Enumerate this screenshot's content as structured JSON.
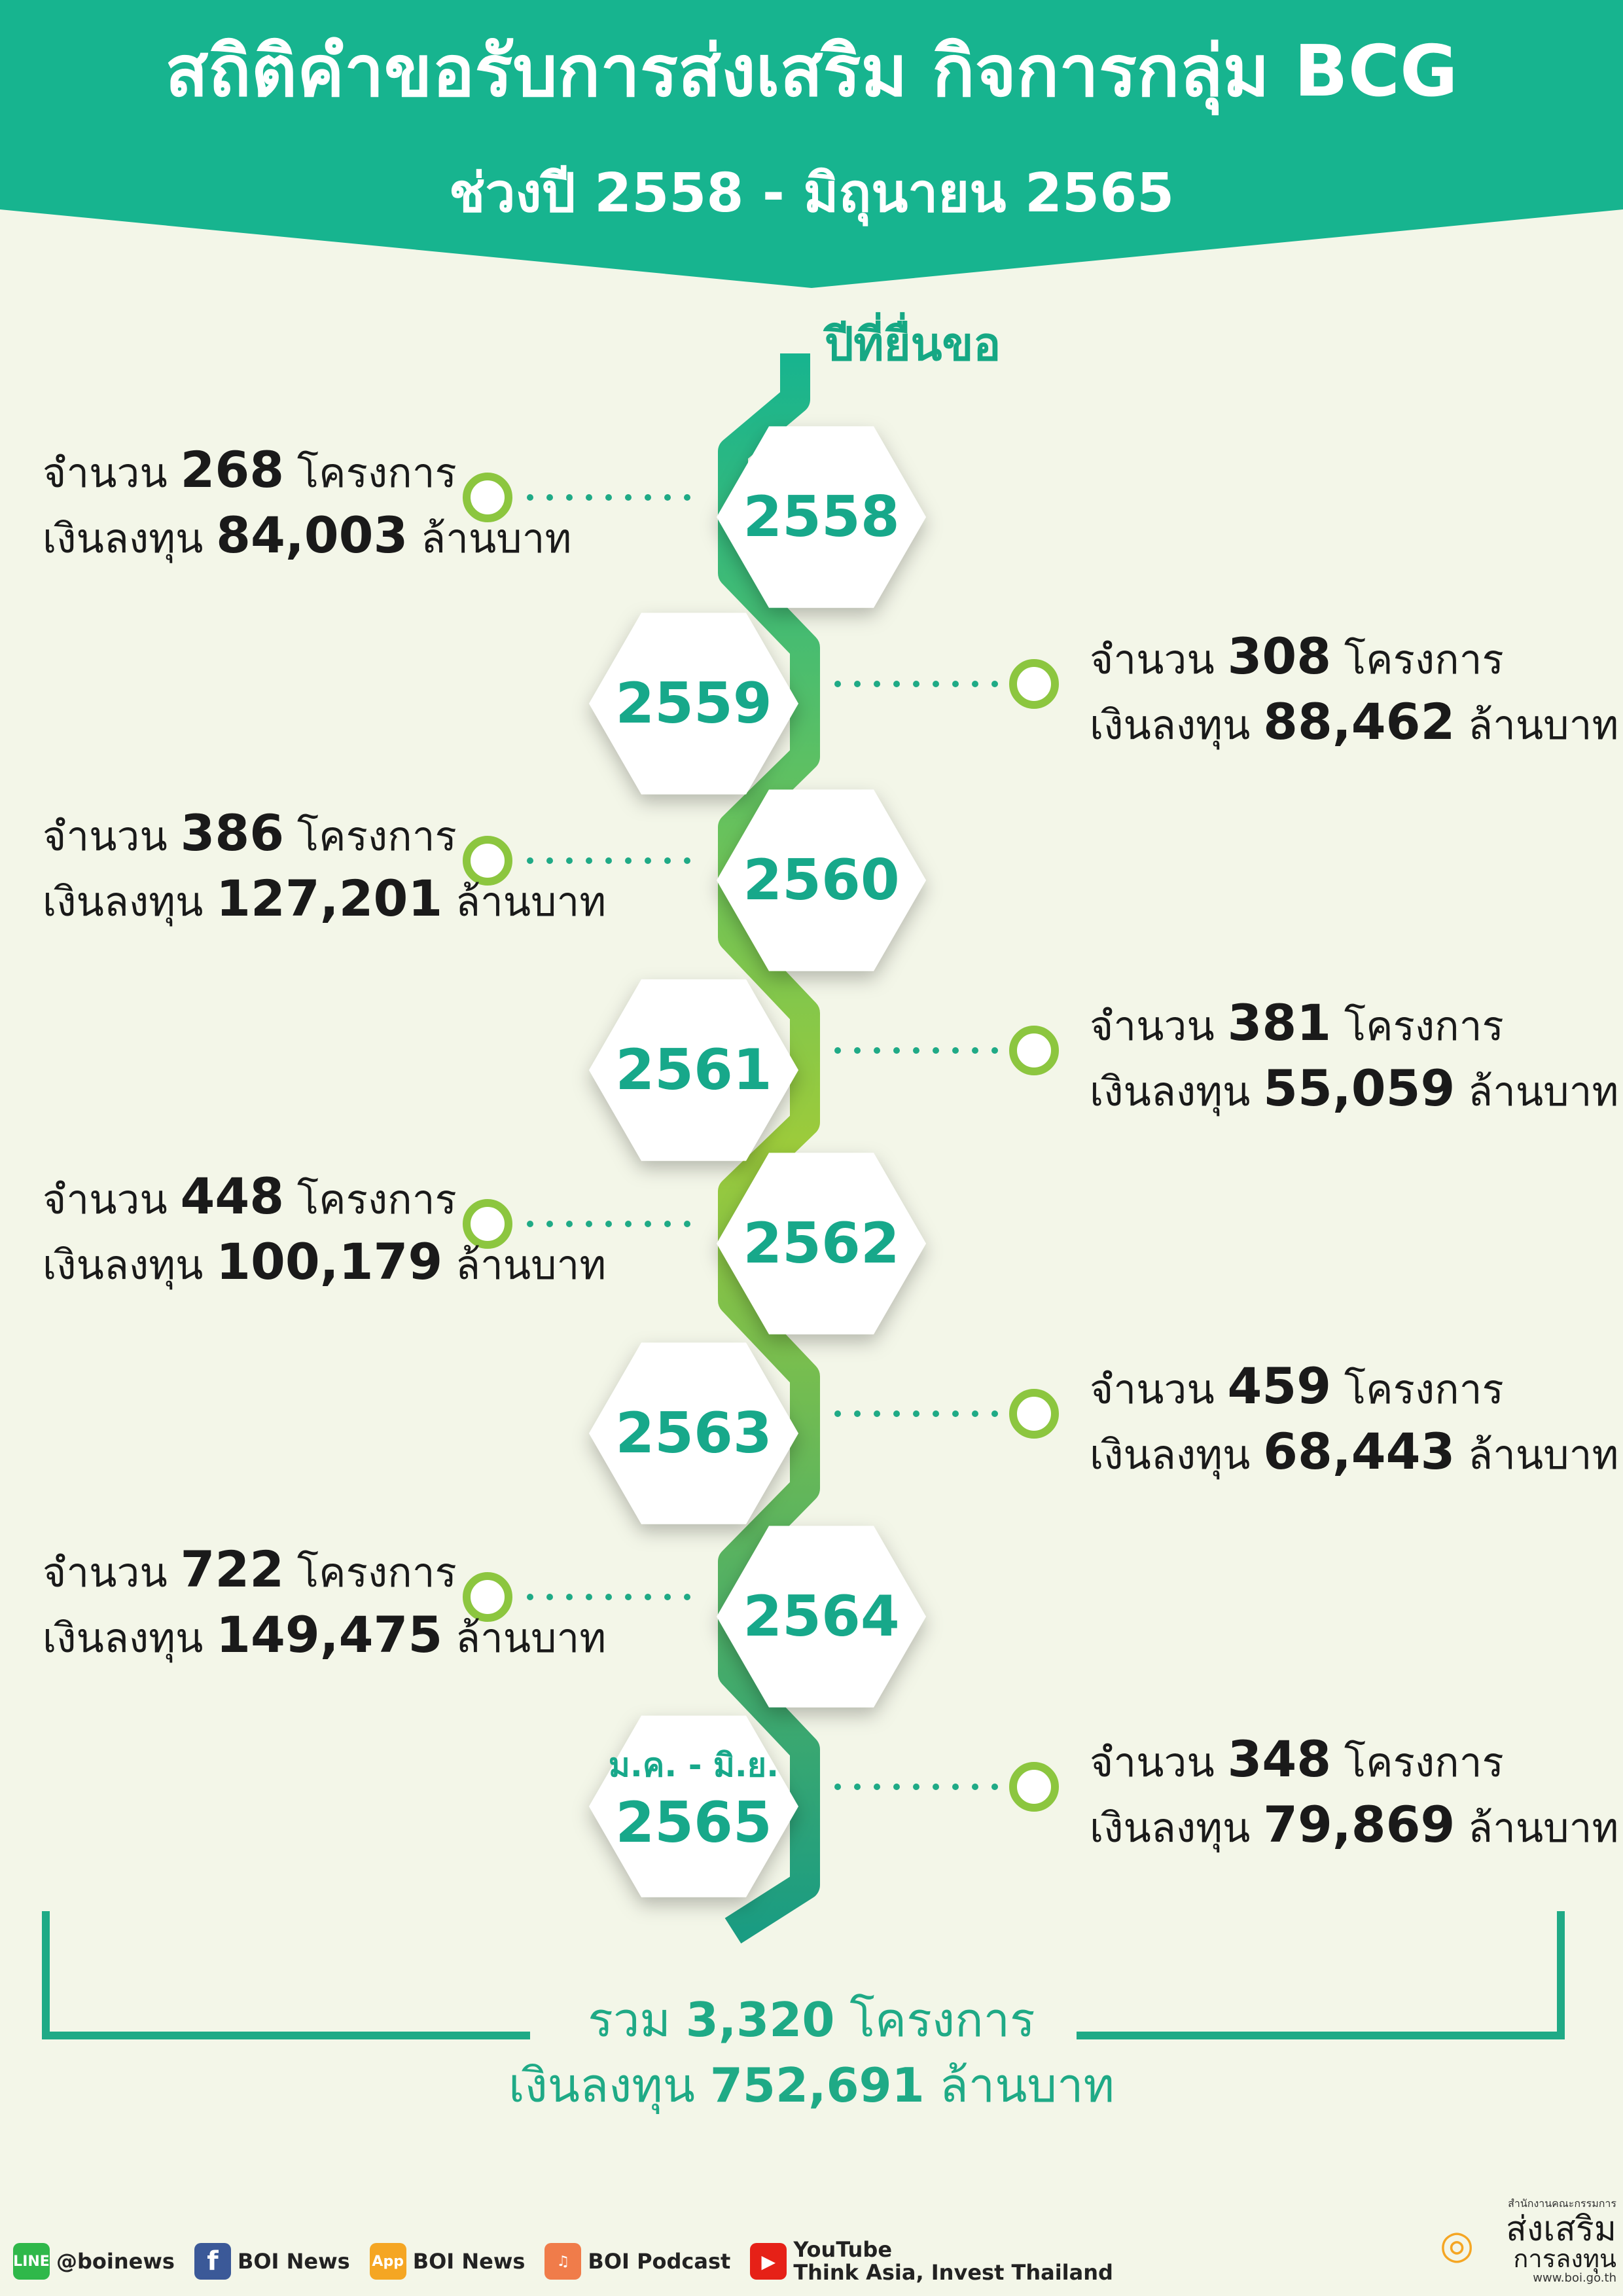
{
  "title": "สถิติคำขอรับการส่งเสริม กิจการกลุ่ม BCG",
  "subtitle": "ช่วงปี 2558 - มิถุนายน 2565",
  "year_label": "ปีที่ยื่นขอ",
  "labels": {
    "count_prefix": "จำนวน",
    "count_suffix": "โครงการ",
    "invest_prefix": "เงินลงทุน",
    "invest_suffix": "ล้านบาท"
  },
  "years": [
    {
      "year": "2558",
      "projects": "268",
      "investment": "84,003",
      "side": "left"
    },
    {
      "year": "2559",
      "projects": "308",
      "investment": "88,462",
      "side": "right"
    },
    {
      "year": "2560",
      "projects": "386",
      "investment": "127,201",
      "side": "left"
    },
    {
      "year": "2561",
      "projects": "381",
      "investment": "55,059",
      "side": "right"
    },
    {
      "year": "2562",
      "projects": "448",
      "investment": "100,179",
      "side": "left"
    },
    {
      "year": "2563",
      "projects": "459",
      "investment": "68,443",
      "side": "right"
    },
    {
      "year": "2564",
      "projects": "722",
      "investment": "149,475",
      "side": "left"
    },
    {
      "year": "2565",
      "year_prefix": "ม.ค. - มิ.ย.",
      "projects": "348",
      "investment": "79,869",
      "side": "right"
    }
  ],
  "total": {
    "prefix": "รวม",
    "projects": "3,320",
    "projects_suffix": "โครงการ",
    "invest_prefix": "เงินลงทุน",
    "investment": "752,691",
    "invest_suffix": "ล้านบาท"
  },
  "footer": {
    "line_handle": "@boinews",
    "facebook": "BOI News",
    "app": "BOI News",
    "podcast": "BOI Podcast",
    "youtube_1": "YouTube",
    "youtube_2": "Think Asia, Invest Thailand"
  },
  "logo": {
    "line1": "สำนักงานคณะกรรมการ",
    "line2": "ส่งเสริม",
    "line3": "การลงทุน",
    "url": "www.boi.go.th"
  },
  "colors": {
    "header": "#17b48f",
    "accent": "#17a88a",
    "lime": "#9ccb3b",
    "background": "#f3f6e8"
  }
}
